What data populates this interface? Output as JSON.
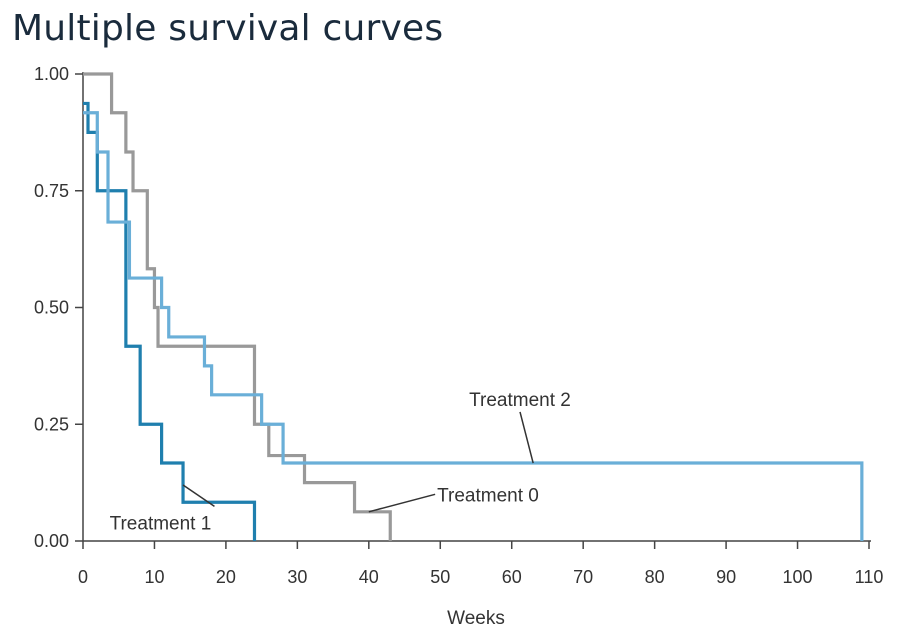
{
  "title": "Multiple survival curves",
  "chart_data": {
    "type": "line",
    "step": true,
    "title": "Multiple survival curves",
    "xlabel": "Weeks",
    "ylabel": "",
    "xlim": [
      0,
      110
    ],
    "ylim": [
      0,
      1
    ],
    "x_ticks": [
      0,
      10,
      20,
      30,
      40,
      50,
      60,
      70,
      80,
      90,
      100,
      110
    ],
    "y_ticks": [
      0,
      0.25,
      0.5,
      0.75,
      1.0
    ],
    "y_tick_labels": [
      "0.00",
      "0.25",
      "0.50",
      "0.75",
      "1.00"
    ],
    "grid": false,
    "legend": "none",
    "series": [
      {
        "name": "Treatment 0",
        "color": "#999999",
        "points": [
          [
            0,
            1.0
          ],
          [
            4,
            0.917
          ],
          [
            6,
            0.833
          ],
          [
            7,
            0.75
          ],
          [
            9,
            0.583
          ],
          [
            10,
            0.5
          ],
          [
            10.5,
            0.417
          ],
          [
            24,
            0.25
          ],
          [
            26,
            0.183
          ],
          [
            31,
            0.125
          ],
          [
            38,
            0.0625
          ],
          [
            43,
            0.0
          ]
        ]
      },
      {
        "name": "Treatment 1",
        "color": "#1f7fae",
        "points": [
          [
            0,
            0.937
          ],
          [
            0.7,
            0.875
          ],
          [
            2,
            0.75
          ],
          [
            6,
            0.417
          ],
          [
            8,
            0.25
          ],
          [
            11,
            0.167
          ],
          [
            14,
            0.083
          ],
          [
            24,
            0.0
          ]
        ]
      },
      {
        "name": "Treatment 2",
        "color": "#6aafd8",
        "points": [
          [
            0,
            0.917
          ],
          [
            2,
            0.833
          ],
          [
            3.5,
            0.683
          ],
          [
            6,
            0.683
          ],
          [
            6.5,
            0.563
          ],
          [
            11,
            0.5
          ],
          [
            12,
            0.437
          ],
          [
            17,
            0.375
          ],
          [
            18,
            0.313
          ],
          [
            24,
            0.313
          ],
          [
            25,
            0.25
          ],
          [
            28,
            0.167
          ],
          [
            109,
            0.167
          ],
          [
            109,
            0.0
          ]
        ]
      }
    ],
    "annotations": [
      {
        "text": "Treatment 2",
        "label_x": 62,
        "label_y": 0.285,
        "point_x": 63,
        "point_y": 0.167
      },
      {
        "text": "Treatment 0",
        "label_x": 49,
        "label_y": 0.1,
        "point_x": 40,
        "point_y": 0.0625
      },
      {
        "text": "Treatment 1",
        "label_x": 10,
        "label_y": 0.04,
        "point_x": 14,
        "point_y": 0.12
      }
    ]
  }
}
